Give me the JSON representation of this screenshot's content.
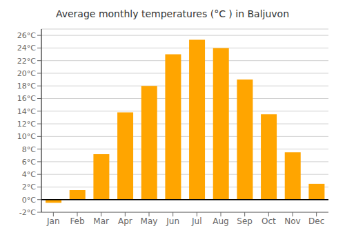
{
  "chart_data": {
    "type": "bar",
    "title": "Average monthly temperatures (°C ) in Baljuvon",
    "categories": [
      "Jan",
      "Feb",
      "Mar",
      "Apr",
      "May",
      "Jun",
      "Jul",
      "Aug",
      "Sep",
      "Oct",
      "Nov",
      "Dec"
    ],
    "values": [
      -0.5,
      1.5,
      7.2,
      13.8,
      18.0,
      23.0,
      25.3,
      24.0,
      19.0,
      13.5,
      7.5,
      2.5
    ],
    "color": "#FFA500",
    "ylim": [
      -2,
      27
    ],
    "yticks": [
      {
        "value": -2,
        "label": "-2°C"
      },
      {
        "value": 0,
        "label": "0°C"
      },
      {
        "value": 2,
        "label": "2°C"
      },
      {
        "value": 4,
        "label": "4°C"
      },
      {
        "value": 6,
        "label": "6°C"
      },
      {
        "value": 8,
        "label": "8°C"
      },
      {
        "value": 10,
        "label": "10°C"
      },
      {
        "value": 12,
        "label": "12°C"
      },
      {
        "value": 14,
        "label": "14°C"
      },
      {
        "value": 16,
        "label": "16°C"
      },
      {
        "value": 18,
        "label": "18°C"
      },
      {
        "value": 20,
        "label": "20°C"
      },
      {
        "value": 22,
        "label": "22°C"
      },
      {
        "value": 24,
        "label": "24°C"
      },
      {
        "value": 26,
        "label": "26°C"
      }
    ],
    "grid": true
  }
}
